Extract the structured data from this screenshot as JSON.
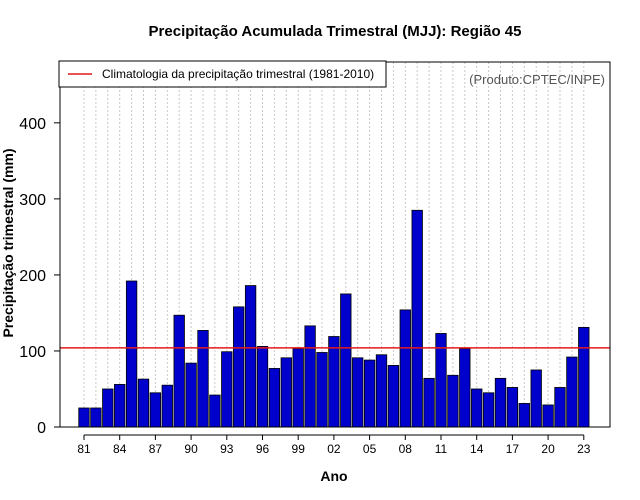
{
  "chart_data": {
    "type": "bar",
    "title": "Precipitação Acumulada Trimestral (MJJ): Região 45",
    "xlabel": "Ano",
    "ylabel": "Precipitação trimestral (mm)",
    "ylim": [
      0,
      480
    ],
    "yticks": [
      0,
      100,
      200,
      300,
      400
    ],
    "xtick_labels": [
      "81",
      "84",
      "87",
      "90",
      "93",
      "96",
      "99",
      "02",
      "05",
      "08",
      "11",
      "14",
      "17",
      "20",
      "23"
    ],
    "xtick_years": [
      1981,
      1984,
      1987,
      1990,
      1993,
      1996,
      1999,
      2002,
      2005,
      2008,
      2011,
      2014,
      2017,
      2020,
      2023
    ],
    "categories": [
      1981,
      1982,
      1983,
      1984,
      1985,
      1986,
      1987,
      1988,
      1989,
      1990,
      1991,
      1992,
      1993,
      1994,
      1995,
      1996,
      1997,
      1998,
      1999,
      2000,
      2001,
      2002,
      2003,
      2004,
      2005,
      2006,
      2007,
      2008,
      2009,
      2010,
      2011,
      2012,
      2013,
      2014,
      2015,
      2016,
      2017,
      2018,
      2019,
      2020,
      2021,
      2022,
      2023
    ],
    "values": [
      25,
      25,
      50,
      56,
      192,
      63,
      45,
      55,
      147,
      84,
      127,
      42,
      99,
      158,
      186,
      106,
      77,
      91,
      103,
      133,
      98,
      119,
      175,
      91,
      88,
      95,
      81,
      154,
      285,
      64,
      123,
      68,
      103,
      50,
      45,
      64,
      52,
      31,
      75,
      29,
      52,
      92,
      131
    ],
    "climatology": 104,
    "legend": "Climatologia da precipitação trimestral (1981-2010)",
    "legend_position": "top-left",
    "credit": "(Produto:CPTEC/INPE)",
    "grid": "vertical-dotted",
    "colors": {
      "bar": "#0000cc",
      "climatology": "#e31a1c",
      "grid": "#c8c8c8"
    }
  }
}
